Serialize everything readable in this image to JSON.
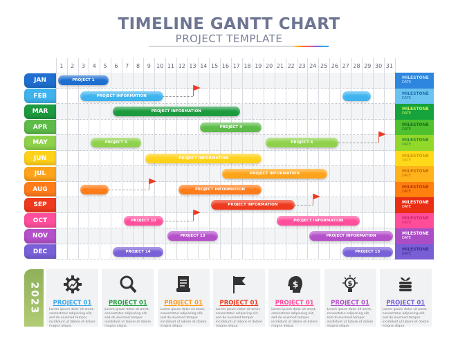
{
  "header": {
    "title": "TIMELINE GANTT CHART",
    "subtitle": "PROJECT TEMPLATE"
  },
  "days": [
    "1",
    "2",
    "3",
    "4",
    "5",
    "6",
    "7",
    "8",
    "9",
    "10",
    "11",
    "12",
    "13",
    "14",
    "15",
    "16",
    "17",
    "18",
    "19",
    "20",
    "21",
    "22",
    "23",
    "24",
    "25",
    "26",
    "27",
    "28",
    "29",
    "30",
    "31"
  ],
  "months": [
    {
      "label": "JAN",
      "color": "#1f6fd1",
      "ms": "#2e86de",
      "msText": "#bfe3ff"
    },
    {
      "label": "FEB",
      "color": "#3fb3ee",
      "ms": "#6bc3ef",
      "msText": "#1f6fb0"
    },
    {
      "label": "MAR",
      "color": "#1c9a3e",
      "ms": "#17a33b",
      "msText": "#c8f55a"
    },
    {
      "label": "APR",
      "color": "#5dbb4a",
      "ms": "#4fc12e",
      "msText": "#1d6b1d"
    },
    {
      "label": "MAY",
      "color": "#8fd24a",
      "ms": "#92d82a",
      "msText": "#2d8a2d"
    },
    {
      "label": "JUN",
      "color": "#ffd21a",
      "ms": "#ffd91a",
      "msText": "#d19a00"
    },
    {
      "label": "JUL",
      "color": "#ffa41a",
      "ms": "#ffb31a",
      "msText": "#c96a00"
    },
    {
      "label": "AUG",
      "color": "#ff7c1a",
      "ms": "#ff7f0f",
      "msText": "#b53b00"
    },
    {
      "label": "SEP",
      "color": "#ee3a1e",
      "ms": "#ea2e14",
      "msText": "#ffffff"
    },
    {
      "label": "OCT",
      "color": "#ff4f9c",
      "ms": "#ff4d9a",
      "msText": "#c8286a"
    },
    {
      "label": "NOV",
      "color": "#b450c9",
      "ms": "#ab4dc6",
      "msText": "#ffffff"
    },
    {
      "label": "DEC",
      "color": "#7a60d8",
      "ms": "#7a5ed6",
      "msText": "#3f2d8c"
    }
  ],
  "milestone": {
    "line1": "MILESTONE",
    "line2": "DATE"
  },
  "bars": [
    {
      "month": 0,
      "start": 1,
      "end": 5,
      "label": "PROJECT 1"
    },
    {
      "month": 1,
      "start": 3,
      "end": 10,
      "label": "PROJECT INFORMATION",
      "flag": 13
    },
    {
      "month": 1,
      "start": 27,
      "end": 29,
      "label": ""
    },
    {
      "month": 2,
      "start": 6,
      "end": 17,
      "label": "PROJECT INFORMATION"
    },
    {
      "month": 3,
      "start": 14,
      "end": 19,
      "label": "PROJECT 4"
    },
    {
      "month": 4,
      "start": 4,
      "end": 8,
      "label": "PROJECT 5"
    },
    {
      "month": 4,
      "start": 20,
      "end": 26,
      "label": "PROJECT 6",
      "flag": 30
    },
    {
      "month": 5,
      "start": 9,
      "end": 19,
      "label": "PROJECT INFORMATION"
    },
    {
      "month": 6,
      "start": 16,
      "end": 25,
      "label": "PROJECT INFORMATION"
    },
    {
      "month": 7,
      "start": 3,
      "end": 5,
      "label": "",
      "flag": 9
    },
    {
      "month": 7,
      "start": 12,
      "end": 19,
      "label": "PROJECT INFORMATION"
    },
    {
      "month": 8,
      "start": 15,
      "end": 22,
      "label": "PROJECT INFORMATION",
      "flag": 24
    },
    {
      "month": 9,
      "start": 7,
      "end": 10,
      "label": "PROJECT 10",
      "flag": 13
    },
    {
      "month": 9,
      "start": 21,
      "end": 28,
      "label": "PROJECT INFORMATION"
    },
    {
      "month": 10,
      "start": 11,
      "end": 15,
      "label": "PROJECT 13"
    },
    {
      "month": 10,
      "start": 24,
      "end": 31,
      "label": "PROJECT INFORMATION"
    },
    {
      "month": 11,
      "start": 6,
      "end": 10,
      "label": "PROJECT 14"
    },
    {
      "month": 11,
      "start": 27,
      "end": 31,
      "label": "PROJECT 15"
    }
  ],
  "year": "2023",
  "cards": [
    {
      "icon": "gear-chart",
      "title": "PROJECT 01",
      "color": "#3fa6e6",
      "text": "Lorem ipsum dolor sit amet, consectetur adipiscing elit, sed do eiusmod tempor incididunt ut labore et dolore magna aliqua."
    },
    {
      "icon": "search",
      "title": "PROJECT 01",
      "color": "#25a244",
      "text": "Lorem ipsum dolor sit amet, consectetur adipiscing elit, sed do eiusmod tempor incididunt ut labore et dolore magna aliqua."
    },
    {
      "icon": "scroll",
      "title": "PROJECT 01",
      "color": "#ff9a1a",
      "text": "Lorem ipsum dolor sit amet, consectetur adipiscing elit, sed do eiusmod tempor incididunt ut labore et dolore magna aliqua."
    },
    {
      "icon": "flag",
      "title": "PROJECT 01",
      "color": "#ee3a1e",
      "text": "Lorem ipsum dolor sit amet, consectetur adipiscing elit, sed do eiusmod tempor incididunt ut labore et dolore magna aliqua."
    },
    {
      "icon": "head-dollar",
      "title": "PROJECT 01",
      "color": "#ff4f9c",
      "text": "Lorem ipsum dolor sit amet, consectetur adipiscing elit, sed do eiusmod tempor incididunt ut labore et dolore magna aliqua."
    },
    {
      "icon": "lightbulb-dollar",
      "title": "PROJECT 01",
      "color": "#b450c9",
      "text": "Lorem ipsum dolor sit amet, consectetur adipiscing elit, sed do eiusmod tempor incididunt ut labore et dolore magna aliqua."
    },
    {
      "icon": "coins-plant",
      "title": "PROJECT 01",
      "color": "#7a60d8",
      "text": "Lorem ipsum dolor sit amet, consectetur adipiscing elit, sed do eiusmod tempor incididunt ut labore et dolore magna aliqua."
    }
  ]
}
